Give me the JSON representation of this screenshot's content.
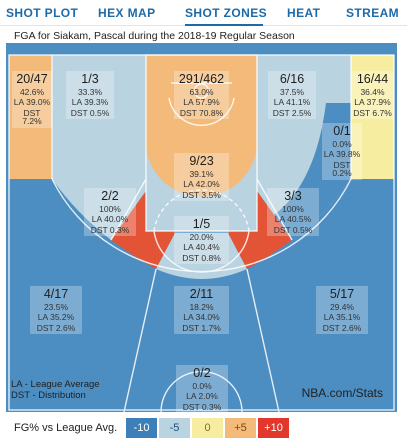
{
  "tabs": [
    {
      "label": "SHOT PLOT"
    },
    {
      "label": "HEX MAP"
    },
    {
      "label": "SHOT ZONES",
      "active": true
    },
    {
      "label": "HEAT"
    },
    {
      "label": "STREAM"
    }
  ],
  "court_title": "FGA for Siakam, Pascal during the 2018-19 Regular Season",
  "zones": [
    {
      "id": "left-corner-3",
      "frac": "20/47",
      "pct": "42.6%",
      "la": "LA 39.0%",
      "dst": "DST 7.2%",
      "color": "#f3ba79"
    },
    {
      "id": "left-wing-3",
      "frac": "1/3",
      "pct": "33.3%",
      "la": "LA 39.3%",
      "dst": "DST 0.5%",
      "color": "#b9d3e1"
    },
    {
      "id": "restricted-area",
      "frac": "291/462",
      "pct": "63.0%",
      "la": "LA 57.9%",
      "dst": "DST 70.8%",
      "color": "#f3ba79"
    },
    {
      "id": "right-wing-3",
      "frac": "6/16",
      "pct": "37.5%",
      "la": "LA 41.1%",
      "dst": "DST 2.5%",
      "color": "#b9d3e1"
    },
    {
      "id": "right-corner-3",
      "frac": "16/44",
      "pct": "36.4%",
      "la": "LA 37.9%",
      "dst": "DST 6.7%",
      "color": "#f7eda1"
    },
    {
      "id": "right-baseline-mid",
      "frac": "0/1",
      "pct": "0.0%",
      "la": "LA 39.8%",
      "dst": "DST 0.2%",
      "color": "#4c8dc2"
    },
    {
      "id": "paint-non-ra",
      "frac": "9/23",
      "pct": "39.1%",
      "la": "LA 42.0%",
      "dst": "DST 3.5%",
      "color": "#b9d3e1"
    },
    {
      "id": "left-mid",
      "frac": "2/2",
      "pct": "100%",
      "la": "LA 40.0%",
      "dst": "DST 0.3%",
      "color": "#e35336"
    },
    {
      "id": "right-mid",
      "frac": "3/3",
      "pct": "100%",
      "la": "LA 40.5%",
      "dst": "DST 0.5%",
      "color": "#e35336"
    },
    {
      "id": "center-mid",
      "frac": "1/5",
      "pct": "20.0%",
      "la": "LA 40.4%",
      "dst": "DST 0.8%",
      "color": "#4c8dc2"
    },
    {
      "id": "left-above-break-3",
      "frac": "4/17",
      "pct": "23.5%",
      "la": "LA 35.2%",
      "dst": "DST 2.6%",
      "color": "#4c8dc2"
    },
    {
      "id": "center-above-break-3",
      "frac": "2/11",
      "pct": "18.2%",
      "la": "LA 34.0%",
      "dst": "DST 1.7%",
      "color": "#4c8dc2"
    },
    {
      "id": "right-above-break-3",
      "frac": "5/17",
      "pct": "29.4%",
      "la": "LA 35.1%",
      "dst": "DST 2.6%",
      "color": "#4c8dc2"
    },
    {
      "id": "backcourt",
      "frac": "0/2",
      "pct": "0.0%",
      "la": "LA 2.0%",
      "dst": "DST 0.3%",
      "color": "#4c8dc2"
    }
  ],
  "legend_note": {
    "line1": "LA - League Average",
    "line2": "DST - Distribution"
  },
  "brand": "NBA.com/Stats",
  "scale": {
    "title": "FG% vs League Avg.",
    "items": [
      {
        "label": "-10",
        "color": "#3c7fb9",
        "text_color": "#ffffff"
      },
      {
        "label": "-5",
        "color": "#b9d3e1",
        "text_color": "#1d4f7a"
      },
      {
        "label": "0",
        "color": "#f7eda1",
        "text_color": "#8a6d12"
      },
      {
        "label": "+5",
        "color": "#f3ba79",
        "text_color": "#7a4a12"
      },
      {
        "label": "+10",
        "color": "#e2372d",
        "text_color": "#ffffff"
      }
    ]
  }
}
